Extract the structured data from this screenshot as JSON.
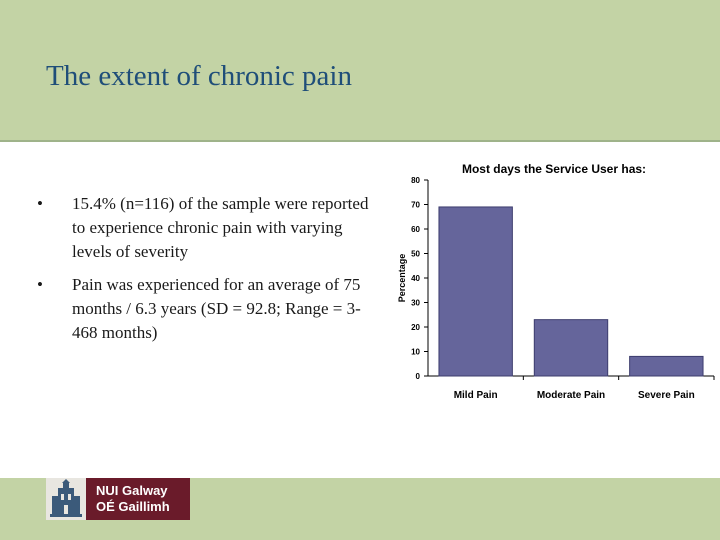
{
  "slide": {
    "title": "The extent of chronic pain",
    "bullets": [
      {
        "marker": "•",
        "text": "15.4% (n=116) of the sample were reported to experience chronic pain with varying levels of severity"
      },
      {
        "marker": "•",
        "text": "Pain was experienced for an average of 75 months / 6.3 years (SD = 92.8; Range = 3-468 months)"
      }
    ]
  },
  "footer": {
    "logo_line1": "NUI Galway",
    "logo_line2": "OÉ Gaillimh"
  },
  "colors": {
    "header_bg": "#c3d3a5",
    "title": "#1f4e79",
    "bar": "#65659b",
    "logo_bg": "#6a1b2a"
  },
  "chart_data": {
    "type": "bar",
    "title": "Most days the Service User has:",
    "xlabel": "",
    "ylabel": "Percentage",
    "categories": [
      "Mild Pain",
      "Moderate Pain",
      "Severe Pain"
    ],
    "values": [
      69,
      23,
      8
    ],
    "ylim": [
      0,
      80
    ],
    "yticks": [
      0,
      10,
      20,
      30,
      40,
      50,
      60,
      70,
      80
    ],
    "grid": false,
    "legend": "none"
  }
}
